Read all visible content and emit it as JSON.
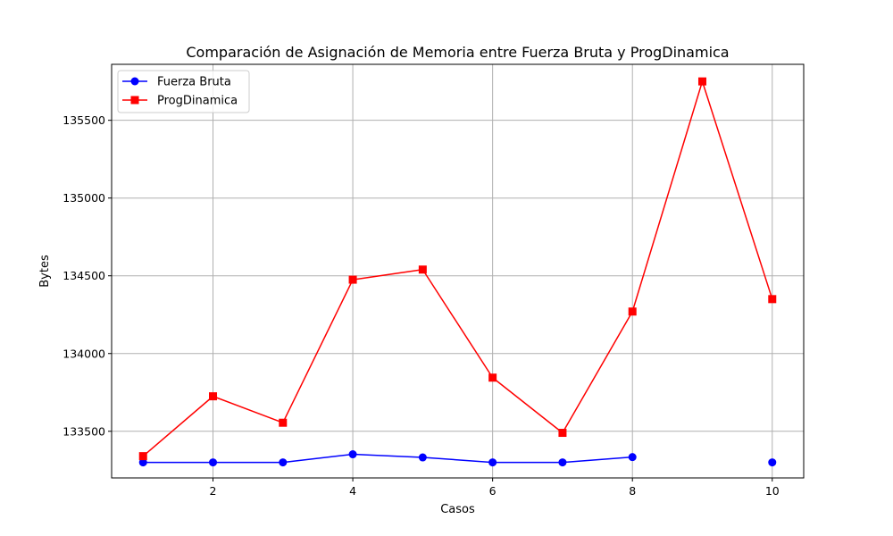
{
  "chart_data": {
    "type": "line",
    "title": "Comparación de Asignación de Memoria entre Fuerza Bruta y ProgDinamica",
    "xlabel": "Casos",
    "ylabel": "Bytes",
    "xlim": [
      0.55,
      10.45
    ],
    "ylim": [
      133200,
      135860
    ],
    "xticks": [
      2,
      4,
      6,
      8,
      10
    ],
    "yticks": [
      133500,
      134000,
      134500,
      135000,
      135500
    ],
    "grid": true,
    "legend_position": "top-left",
    "series": [
      {
        "name": "Fuerza Bruta",
        "color": "#0000ff",
        "marker": "circle",
        "x": [
          1,
          2,
          3,
          4,
          5,
          6,
          7,
          8,
          10
        ],
        "y": [
          133300,
          133300,
          133300,
          133352,
          133332,
          133300,
          133300,
          133334,
          133300
        ],
        "segments": [
          [
            0,
            7
          ],
          [
            8,
            8
          ]
        ]
      },
      {
        "name": "ProgDinamica",
        "color": "#ff0000",
        "marker": "square",
        "x": [
          1,
          2,
          3,
          4,
          5,
          6,
          7,
          8,
          9,
          10
        ],
        "y": [
          133340,
          133725,
          133555,
          134475,
          134540,
          133845,
          133490,
          134270,
          135750,
          134350
        ]
      }
    ]
  }
}
